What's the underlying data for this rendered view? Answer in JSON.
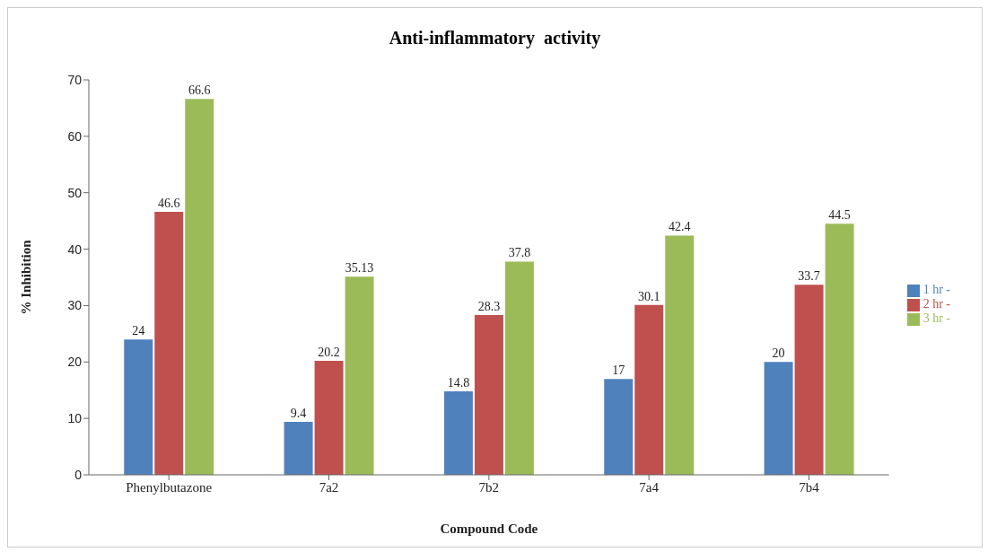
{
  "chart_data": {
    "type": "bar",
    "title": "Anti-inflammatory  activity",
    "xlabel": "Compound Code",
    "ylabel": "% Inhibition",
    "categories": [
      "Phenylbutazone",
      "7a2",
      "7b2",
      "7a4",
      "7b4"
    ],
    "series": [
      {
        "name": "1 hr -",
        "color": "#4f81bd",
        "values": [
          24,
          9.4,
          14.8,
          17,
          20
        ]
      },
      {
        "name": "2 hr -",
        "color": "#c0504d",
        "values": [
          46.6,
          20.2,
          28.3,
          30.1,
          33.7
        ]
      },
      {
        "name": "3 hr -",
        "color": "#9bbb59",
        "values": [
          66.6,
          35.13,
          37.8,
          42.4,
          44.5
        ]
      }
    ],
    "ylim": [
      0,
      70
    ],
    "yticks": [
      0,
      10,
      20,
      30,
      40,
      50,
      60,
      70
    ],
    "grid": false,
    "legend": "right",
    "data_labels": true
  }
}
